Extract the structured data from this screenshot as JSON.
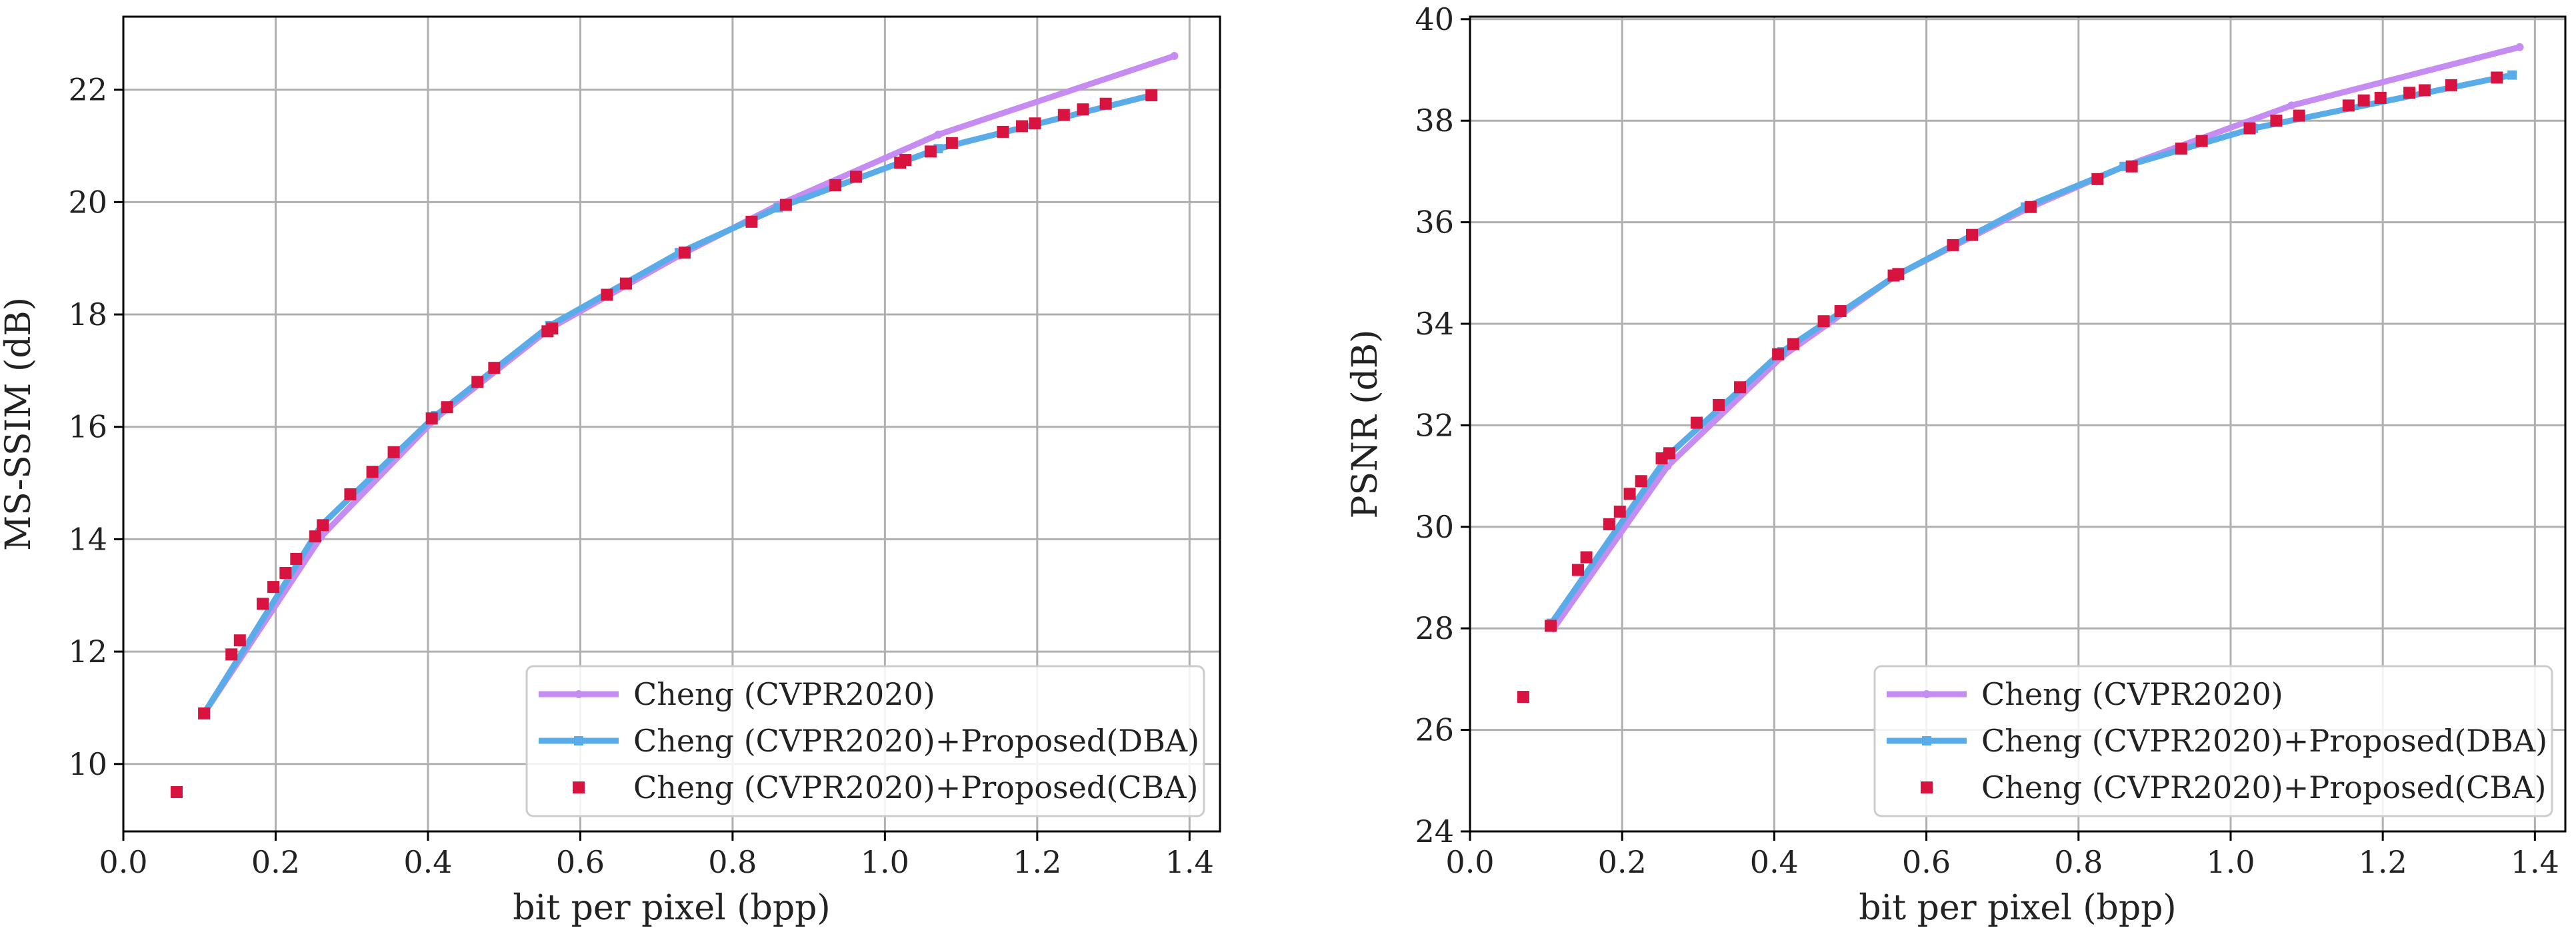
{
  "chart_data": [
    {
      "type": "line",
      "xlabel": "bit per pixel (bpp)",
      "ylabel": "MS-SSIM (dB)",
      "xlim": [
        0.0,
        1.44
      ],
      "ylim": [
        8.8,
        23.3
      ],
      "xticks": [
        0.0,
        0.2,
        0.4,
        0.6,
        0.8,
        1.0,
        1.2,
        1.4
      ],
      "xtick_labels": [
        "0.0",
        "0.2",
        "0.4",
        "0.6",
        "0.8",
        "1.0",
        "1.2",
        "1.4"
      ],
      "yticks": [
        10,
        12,
        14,
        16,
        18,
        20,
        22
      ],
      "ytick_labels": [
        "10",
        "12",
        "14",
        "16",
        "18",
        "20",
        "22"
      ],
      "grid": true,
      "legend_position": "lower right",
      "series": [
        {
          "name": "Cheng (CVPR2020)",
          "style": "line-small-markers",
          "color": "#c58cf2",
          "x": [
            0.106,
            0.26,
            0.41,
            0.56,
            0.73,
            0.86,
            1.07,
            1.38
          ],
          "y": [
            10.9,
            14.05,
            16.15,
            17.75,
            19.05,
            19.95,
            21.2,
            22.6
          ]
        },
        {
          "name": "Cheng (CVPR2020)+Proposed(DBA)",
          "style": "line-square-markers",
          "color": "#5aace8",
          "x": [
            0.106,
            0.26,
            0.41,
            0.56,
            0.73,
            0.86,
            1.07,
            1.35
          ],
          "y": [
            10.9,
            14.25,
            16.2,
            17.8,
            19.1,
            19.9,
            20.95,
            21.9
          ]
        },
        {
          "name": "Cheng (CVPR2020)+Proposed(CBA)",
          "style": "square-markers",
          "color": "#d8133f",
          "x": [
            0.07,
            0.106,
            0.142,
            0.153,
            0.183,
            0.197,
            0.213,
            0.227,
            0.252,
            0.262,
            0.298,
            0.327,
            0.355,
            0.405,
            0.425,
            0.465,
            0.487,
            0.557,
            0.563,
            0.635,
            0.66,
            0.737,
            0.825,
            0.87,
            0.935,
            0.962,
            1.02,
            1.027,
            1.06,
            1.088,
            1.155,
            1.18,
            1.197,
            1.235,
            1.26,
            1.29,
            1.35
          ],
          "y": [
            9.5,
            10.9,
            11.95,
            12.2,
            12.85,
            13.15,
            13.4,
            13.65,
            14.05,
            14.25,
            14.8,
            15.2,
            15.55,
            16.15,
            16.35,
            16.8,
            17.05,
            17.7,
            17.75,
            18.35,
            18.55,
            19.1,
            19.65,
            19.95,
            20.3,
            20.45,
            20.7,
            20.75,
            20.9,
            21.05,
            21.25,
            21.35,
            21.4,
            21.55,
            21.65,
            21.75,
            21.9
          ]
        }
      ]
    },
    {
      "type": "line",
      "xlabel": "bit per pixel (bpp)",
      "ylabel": "PSNR (dB)",
      "xlim": [
        0.0,
        1.44
      ],
      "ylim": [
        24,
        40.05
      ],
      "xticks": [
        0.0,
        0.2,
        0.4,
        0.6,
        0.8,
        1.0,
        1.2,
        1.4
      ],
      "xtick_labels": [
        "0.0",
        "0.2",
        "0.4",
        "0.6",
        "0.8",
        "1.0",
        "1.2",
        "1.4"
      ],
      "yticks": [
        24,
        26,
        28,
        30,
        32,
        34,
        36,
        38,
        40
      ],
      "ytick_labels": [
        "24",
        "26",
        "28",
        "30",
        "32",
        "34",
        "36",
        "38",
        "40"
      ],
      "grid": true,
      "legend_position": "lower right",
      "series": [
        {
          "name": "Cheng (CVPR2020)",
          "style": "line-small-markers",
          "color": "#c58cf2",
          "x": [
            0.11,
            0.26,
            0.41,
            0.56,
            0.73,
            0.86,
            1.08,
            1.38
          ],
          "y": [
            28.0,
            31.2,
            33.35,
            34.95,
            36.25,
            37.1,
            38.3,
            39.45
          ]
        },
        {
          "name": "Cheng (CVPR2020)+Proposed(DBA)",
          "style": "line-square-markers",
          "color": "#5aace8",
          "x": [
            0.107,
            0.26,
            0.41,
            0.56,
            0.73,
            0.86,
            1.03,
            1.37
          ],
          "y": [
            28.1,
            31.4,
            33.45,
            34.95,
            36.3,
            37.1,
            37.85,
            38.9
          ]
        },
        {
          "name": "Cheng (CVPR2020)+Proposed(CBA)",
          "style": "square-markers",
          "color": "#d8133f",
          "x": [
            0.07,
            0.106,
            0.142,
            0.153,
            0.183,
            0.197,
            0.21,
            0.225,
            0.252,
            0.262,
            0.298,
            0.327,
            0.355,
            0.405,
            0.425,
            0.465,
            0.487,
            0.557,
            0.563,
            0.635,
            0.66,
            0.737,
            0.825,
            0.87,
            0.935,
            0.962,
            1.025,
            1.06,
            1.09,
            1.155,
            1.175,
            1.197,
            1.235,
            1.255,
            1.29,
            1.35
          ],
          "y": [
            26.65,
            28.05,
            29.15,
            29.4,
            30.05,
            30.3,
            30.65,
            30.9,
            31.35,
            31.45,
            32.05,
            32.4,
            32.75,
            33.4,
            33.6,
            34.05,
            34.25,
            34.95,
            34.98,
            35.55,
            35.75,
            36.3,
            36.85,
            37.1,
            37.45,
            37.6,
            37.85,
            38.0,
            38.1,
            38.3,
            38.4,
            38.45,
            38.55,
            38.6,
            38.7,
            38.85
          ]
        }
      ]
    }
  ]
}
